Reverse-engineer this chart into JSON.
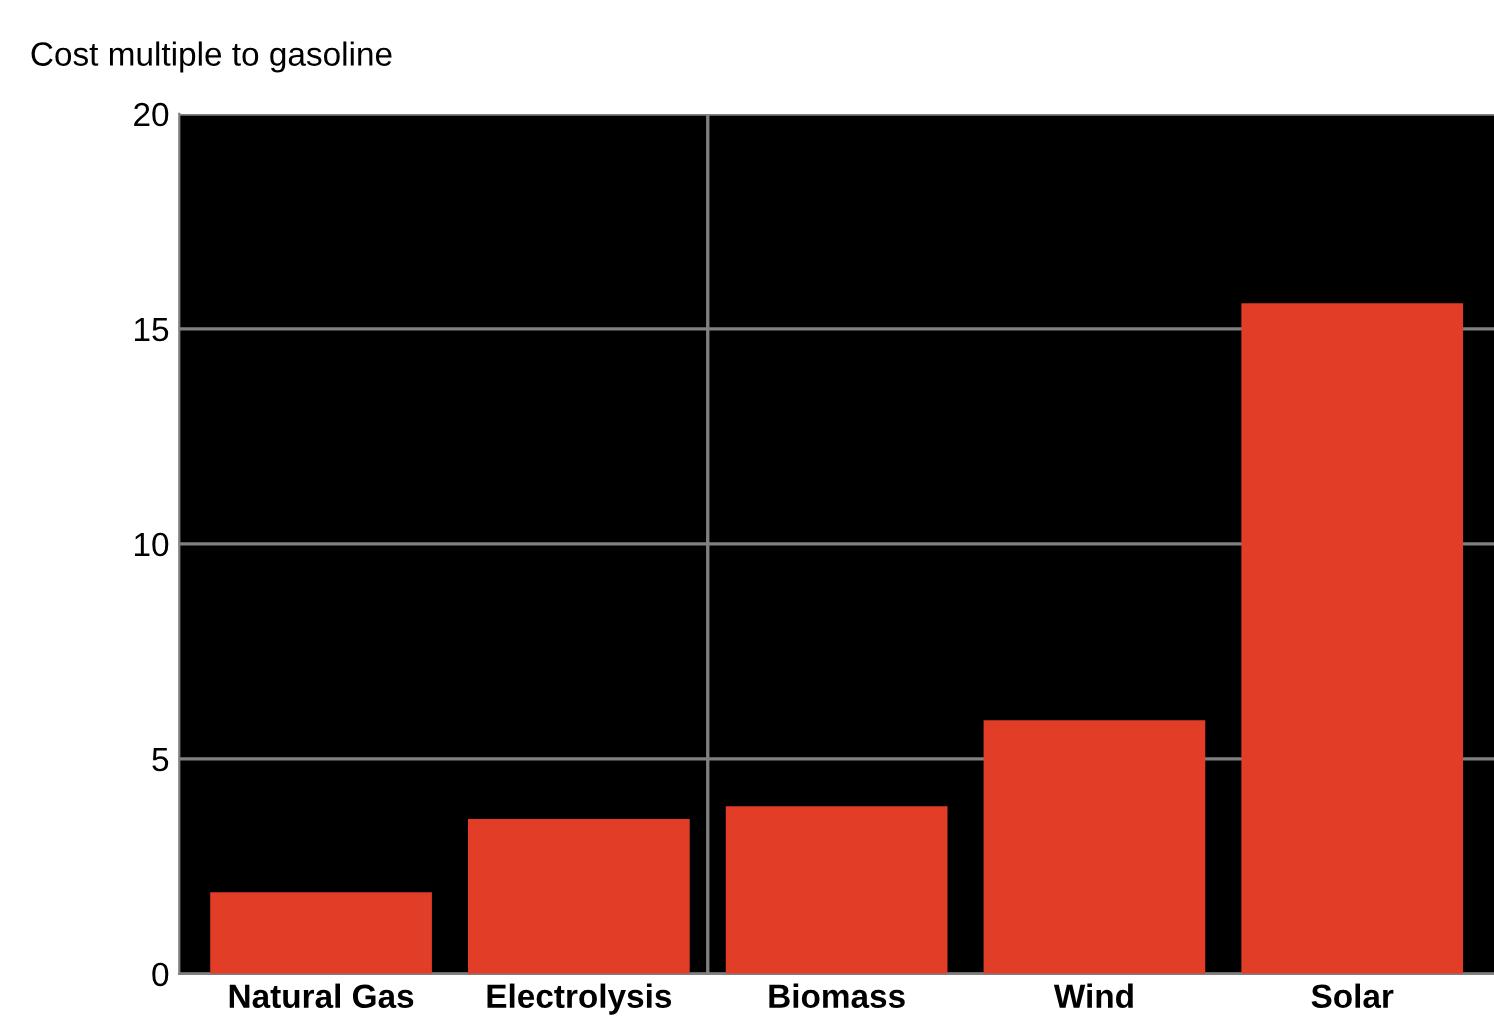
{
  "chart_data": {
    "type": "bar",
    "ylabel": "Cost multiple to gasoline",
    "categories": [
      "Natural Gas",
      "Electrolysis",
      "Biomass",
      "Wind",
      "Solar"
    ],
    "values": [
      1.9,
      3.6,
      3.9,
      5.9,
      15.6
    ],
    "color": "#e23d26",
    "ylim": [
      0,
      20
    ],
    "yticks": [
      0,
      5,
      10,
      15,
      20
    ],
    "grid": "y"
  }
}
